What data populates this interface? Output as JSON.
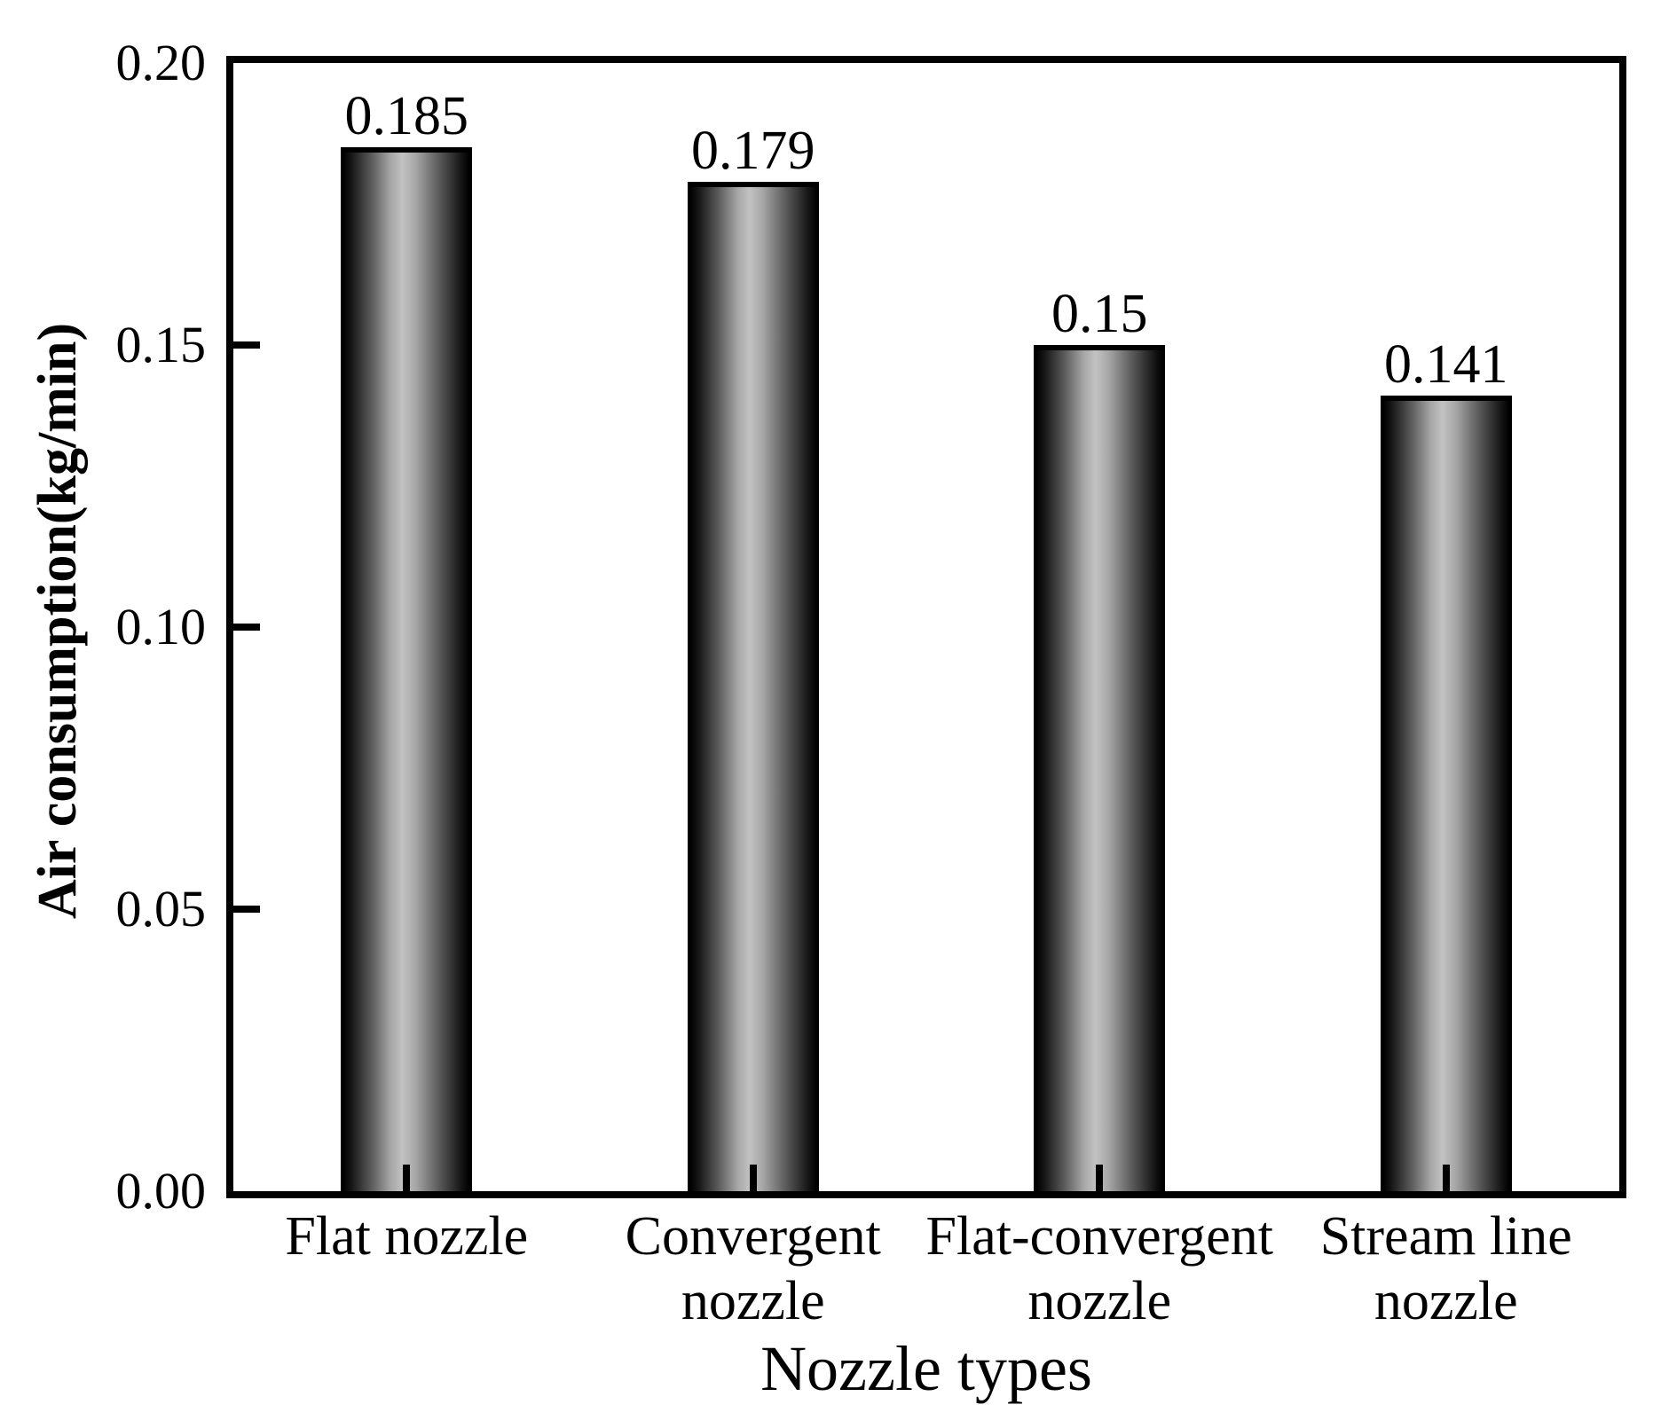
{
  "figure": {
    "background_color": "#ffffff",
    "frame_color": "#000000",
    "text_color": "#000000"
  },
  "chart_data": {
    "type": "bar",
    "title": "",
    "xlabel": "Nozzle types",
    "ylabel": "Air consumption(kg/min)",
    "categories": [
      "Flat nozzle",
      "Convergent nozzle",
      "Flat-convergent nozzle",
      "Stream line nozzle"
    ],
    "category_lines": [
      [
        "Flat nozzle"
      ],
      [
        "Convergent",
        "nozzle"
      ],
      [
        "Flat-convergent",
        "nozzle"
      ],
      [
        "Stream line",
        "nozzle"
      ]
    ],
    "values": [
      0.185,
      0.179,
      0.15,
      0.141
    ],
    "value_labels": [
      "0.185",
      "0.179",
      "0.15",
      "0.141"
    ],
    "ylim": [
      0.0,
      0.2
    ],
    "yticks": [
      0.0,
      0.05,
      0.1,
      0.15,
      0.2
    ],
    "ytick_labels": [
      "0.00",
      "0.05",
      "0.10",
      "0.15",
      "0.20"
    ],
    "grid": false,
    "legend": "none",
    "bar_style": {
      "fill": "gray-cylinder-gradient",
      "edge_color": "#000000",
      "light_center_color": "#c2c2c2",
      "dark_edge_color": "#000000"
    }
  }
}
